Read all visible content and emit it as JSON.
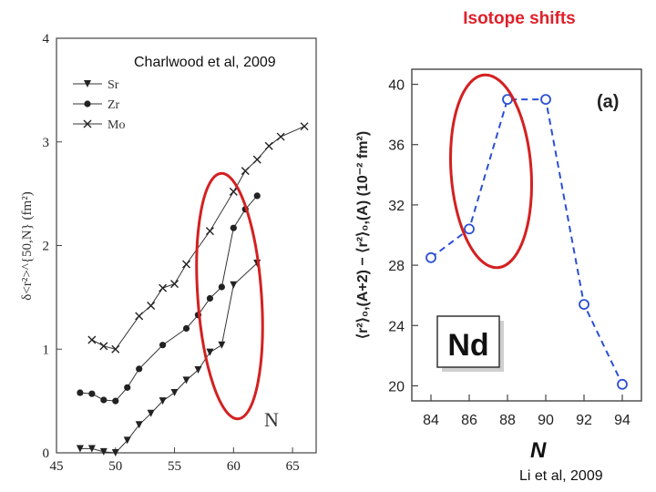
{
  "slide": {
    "title": "Isotope shifts",
    "credit_left": "Charlwood et al, 2009",
    "credit_right": "Li et al, 2009"
  },
  "colors": {
    "title": "#e0202a",
    "highlight_ellipse": "#d42020",
    "right_series": "#2a4fd6",
    "left_series": "#222222"
  },
  "chart_data": [
    {
      "type": "line",
      "title": "",
      "xlabel": "N",
      "ylabel": "δ<r²>^{50,N} (fm²)",
      "xlim": [
        45,
        67
      ],
      "ylim": [
        0,
        4
      ],
      "xticks": [
        45,
        50,
        55,
        60,
        65
      ],
      "yticks": [
        0,
        1,
        2,
        3,
        4
      ],
      "legend_placement": "top-left",
      "series": [
        {
          "name": "Sr",
          "marker": "triangle-down",
          "x": [
            47,
            48,
            49,
            50,
            51,
            52,
            53,
            54,
            55,
            56,
            57,
            58,
            59,
            60,
            62
          ],
          "y": [
            0.04,
            0.04,
            0.01,
            0.0,
            0.12,
            0.27,
            0.38,
            0.5,
            0.58,
            0.7,
            0.8,
            0.97,
            1.04,
            1.62,
            1.83
          ]
        },
        {
          "name": "Zr",
          "marker": "circle",
          "x": [
            47,
            48,
            49,
            50,
            51,
            52,
            54,
            56,
            57,
            58,
            59,
            60,
            61,
            62
          ],
          "y": [
            0.58,
            0.57,
            0.51,
            0.5,
            0.63,
            0.81,
            1.04,
            1.2,
            1.33,
            1.49,
            1.6,
            2.17,
            2.35,
            2.48
          ]
        },
        {
          "name": "Mo",
          "marker": "x",
          "x": [
            48,
            49,
            50,
            52,
            53,
            54,
            55,
            56,
            58,
            60,
            61,
            62,
            63,
            64,
            66
          ],
          "y": [
            1.09,
            1.03,
            1.0,
            1.32,
            1.42,
            1.59,
            1.63,
            1.82,
            2.14,
            2.52,
            2.72,
            2.83,
            2.96,
            3.05,
            3.15
          ]
        }
      ]
    },
    {
      "type": "line",
      "title": "",
      "panel_label": "(a)",
      "annotation": "Nd",
      "xlabel": "N",
      "ylabel": "⟨r²⟩₀,(A+2) − ⟨r²⟩₀,(A) (10⁻² fm²)",
      "xlim": [
        83,
        95
      ],
      "ylim": [
        19,
        41
      ],
      "xticks": [
        84,
        86,
        88,
        90,
        92,
        94
      ],
      "yticks": [
        20,
        24,
        28,
        32,
        36,
        40
      ],
      "series": [
        {
          "name": "Nd",
          "marker": "open-circle",
          "linestyle": "dashed",
          "x": [
            84,
            86,
            88,
            90,
            92,
            94
          ],
          "y": [
            28.5,
            30.4,
            39.0,
            39.0,
            25.4,
            20.1
          ]
        }
      ]
    }
  ]
}
